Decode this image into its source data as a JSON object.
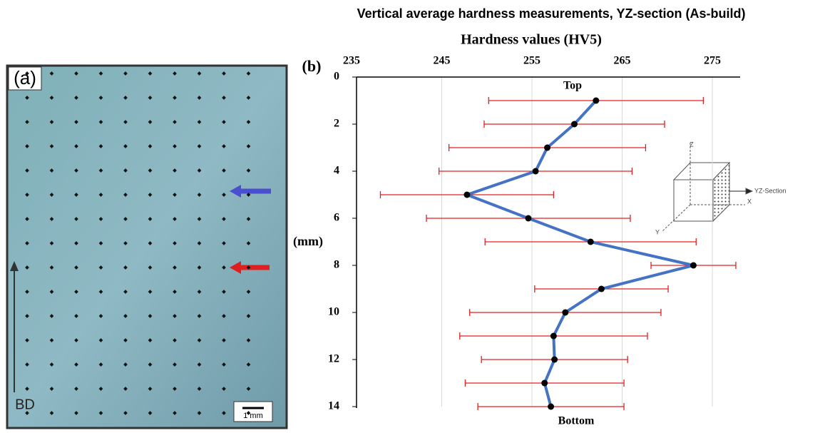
{
  "panel_a": {
    "label": "(a)",
    "direction": "BD",
    "scale_bar": "1 mm"
  },
  "chart_data": {
    "type": "line",
    "title": "Vertical average hardness measurements, YZ-section (As-build)",
    "panel_label": "(b)",
    "x_label": "Hardness values (HV5)",
    "y_label": "(mm)",
    "top_label": "Top",
    "bottom_label": "Bottom",
    "y": [
      1,
      2,
      3,
      4,
      5,
      6,
      7,
      8,
      9,
      10,
      11,
      12,
      13,
      14
    ],
    "values": [
      262.1,
      259.7,
      256.7,
      255.4,
      247.8,
      254.6,
      261.5,
      272.9,
      262.7,
      258.7,
      257.4,
      257.5,
      256.4,
      257.1
    ],
    "errors": [
      11.9,
      10.0,
      10.9,
      10.7,
      9.6,
      11.3,
      11.7,
      4.7,
      7.4,
      10.6,
      10.4,
      8.1,
      8.8,
      8.1
    ],
    "color": "#4472c4",
    "error_color": "#e02020",
    "xlim": [
      235,
      278
    ],
    "xticks": [
      235,
      245,
      255,
      265,
      275
    ],
    "ylim": [
      0,
      14
    ],
    "yticks": [
      0,
      2,
      4,
      6,
      8,
      10,
      12,
      14
    ],
    "grid": true,
    "inset": {
      "section": "YZ-Section",
      "x": "X",
      "y": "Y",
      "z": "Z"
    }
  }
}
